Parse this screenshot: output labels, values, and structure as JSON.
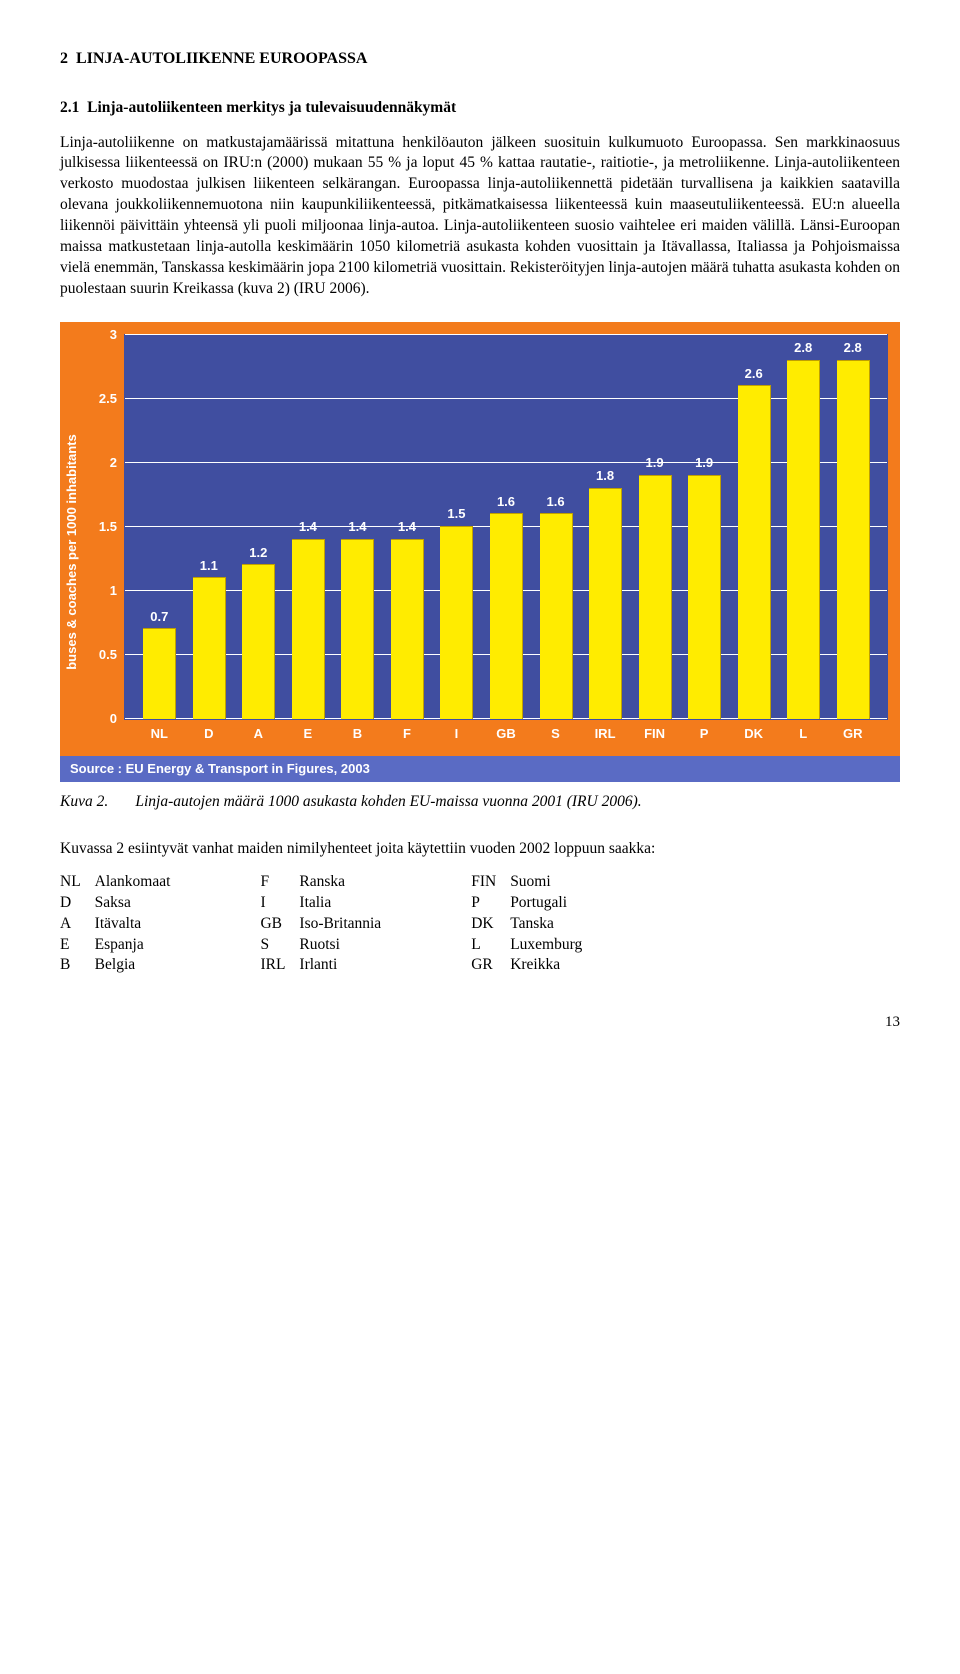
{
  "section": {
    "number": "2",
    "title": "LINJA-AUTOLIIKENNE EUROOPASSA"
  },
  "subsection": {
    "number": "2.1",
    "title": "Linja-autoliikenteen merkitys ja tulevaisuudennäkymät"
  },
  "body_text": "Linja-autoliikenne on matkustajamäärissä mitattuna henkilöauton jälkeen suosituin kulkumuoto Euroopassa. Sen markkinaosuus julkisessa liikenteessä on IRU:n (2000) mukaan 55 % ja loput 45 % kattaa rautatie-, raitiotie-, ja metroliikenne. Linja-autoliikenteen verkosto muodostaa julkisen liikenteen selkärangan. Euroopassa linja-autoliikennettä pidetään turvallisena ja kaikkien saatavilla olevana joukkoliikennemuotona niin kaupunkiliikenteessä, pitkämatkaisessa liikenteessä kuin maaseutuliikenteessä. EU:n alueella liikennöi päivittäin yhteensä yli puoli miljoonaa linja-autoa. Linja-autoliikenteen suosio vaihtelee eri maiden välillä. Länsi-Euroopan maissa matkustetaan linja-autolla keskimäärin 1050 kilometriä asukasta kohden vuosittain ja Itävallassa, Italiassa ja Pohjoismaissa vielä enemmän, Tanskassa keskimäärin jopa 2100 kilometriä vuosittain. Rekisteröityjen linja-autojen määrä tuhatta asukasta kohden on puolestaan suurin Kreikassa (kuva 2) (IRU 2006).",
  "chart": {
    "type": "bar",
    "categories": [
      "NL",
      "D",
      "A",
      "E",
      "B",
      "F",
      "I",
      "GB",
      "S",
      "IRL",
      "FIN",
      "P",
      "DK",
      "L",
      "GR"
    ],
    "values": [
      0.7,
      1.1,
      1.2,
      1.4,
      1.4,
      1.4,
      1.5,
      1.6,
      1.6,
      1.8,
      1.9,
      1.9,
      2.6,
      2.8,
      2.8
    ],
    "ylim": [
      0,
      3
    ],
    "ytick_step": 0.5,
    "yticks": [
      "0",
      "0.5",
      "1",
      "1.5",
      "2",
      "2.5",
      "3"
    ],
    "ylabel": "buses & coaches per 1000 inhabitants",
    "bar_color": "#ffec00",
    "bar_border": "#c0a000",
    "background_color": "#f37b1c",
    "plot_background_color": "#404ea0",
    "grid_color": "#ffffff",
    "source_strip_color": "#5a6bc4",
    "source_text": "Source : EU Energy & Transport in Figures, 2003",
    "bar_width_pct": 4.2,
    "bar_gap_pct": 2.3
  },
  "caption": {
    "label": "Kuva 2.",
    "text": "Linja-autojen määrä 1000 asukasta kohden EU-maissa vuonna 2001 (IRU 2006)."
  },
  "note": "Kuvassa 2 esiintyvät vanhat maiden nimilyhenteet joita käytettiin vuoden 2002 loppuun saakka:",
  "abbrev": {
    "col1": [
      {
        "code": "NL",
        "name": "Alankomaat"
      },
      {
        "code": "D",
        "name": "Saksa"
      },
      {
        "code": "A",
        "name": "Itävalta"
      },
      {
        "code": "E",
        "name": "Espanja"
      },
      {
        "code": "B",
        "name": "Belgia"
      }
    ],
    "col2": [
      {
        "code": "F",
        "name": "Ranska"
      },
      {
        "code": "I",
        "name": "Italia"
      },
      {
        "code": "GB",
        "name": "Iso-Britannia"
      },
      {
        "code": "S",
        "name": "Ruotsi"
      },
      {
        "code": "IRL",
        "name": "Irlanti"
      }
    ],
    "col3": [
      {
        "code": "FIN",
        "name": "Suomi"
      },
      {
        "code": "P",
        "name": "Portugali"
      },
      {
        "code": "DK",
        "name": "Tanska"
      },
      {
        "code": "L",
        "name": "Luxemburg"
      },
      {
        "code": "GR",
        "name": "Kreikka"
      }
    ]
  },
  "page_number": "13"
}
